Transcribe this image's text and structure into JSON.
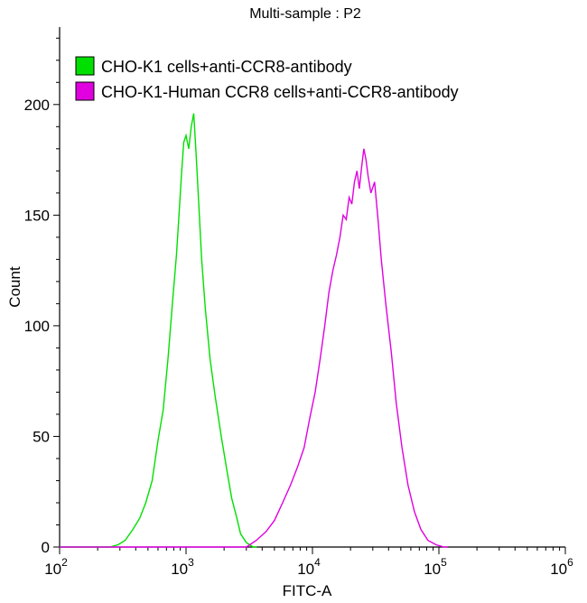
{
  "chart_data": {
    "type": "line",
    "title": "Multi-sample : P2",
    "xlabel": "FITC-A",
    "ylabel": "Count",
    "xscale": "log",
    "xlim": [
      100,
      1000000
    ],
    "ylim": [
      0,
      235
    ],
    "y_ticks": [
      0,
      50,
      100,
      150,
      200
    ],
    "x_tick_labels": [
      {
        "value": 100,
        "base": "10",
        "exp": "2"
      },
      {
        "value": 1000,
        "base": "10",
        "exp": "3"
      },
      {
        "value": 10000,
        "base": "10",
        "exp": "4"
      },
      {
        "value": 100000,
        "base": "10",
        "exp": "5"
      },
      {
        "value": 1000000,
        "base": "10",
        "exp": "6"
      }
    ],
    "grid": false,
    "legend_position": "top-left",
    "series": [
      {
        "name": "CHO-K1 cells+anti-CCR8-antibody",
        "color": "#00e000",
        "x": [
          250,
          290,
          330,
          380,
          430,
          480,
          540,
          600,
          660,
          720,
          780,
          840,
          880,
          920,
          960,
          1000,
          1050,
          1100,
          1150,
          1200,
          1260,
          1330,
          1420,
          1550,
          1700,
          1900,
          2100,
          2300,
          2500,
          2700,
          3000,
          3400
        ],
        "y": [
          0,
          1,
          3,
          8,
          13,
          20,
          30,
          48,
          62,
          85,
          110,
          132,
          150,
          168,
          183,
          186,
          180,
          190,
          196,
          178,
          155,
          130,
          108,
          85,
          68,
          50,
          35,
          22,
          14,
          6,
          2,
          0
        ]
      },
      {
        "name": "CHO-K1-Human CCR8 cells+anti-CCR8-antibody",
        "color": "#e000e0",
        "x": [
          3000,
          3600,
          4300,
          5000,
          5800,
          6700,
          7600,
          8600,
          9500,
          10500,
          11500,
          12500,
          13500,
          14500,
          15500,
          16500,
          17500,
          18500,
          19500,
          20500,
          21500,
          22500,
          23500,
          24500,
          25500,
          26500,
          27500,
          29000,
          31000,
          33000,
          35000,
          38000,
          42000,
          46000,
          51000,
          57000,
          64000,
          72000,
          82000,
          95000,
          110000
        ],
        "y": [
          0,
          3,
          7,
          12,
          20,
          28,
          36,
          45,
          58,
          70,
          85,
          100,
          115,
          125,
          132,
          140,
          150,
          148,
          158,
          155,
          165,
          170,
          162,
          172,
          180,
          175,
          168,
          160,
          165,
          148,
          130,
          110,
          88,
          65,
          45,
          28,
          16,
          8,
          3,
          1,
          0
        ]
      }
    ]
  }
}
